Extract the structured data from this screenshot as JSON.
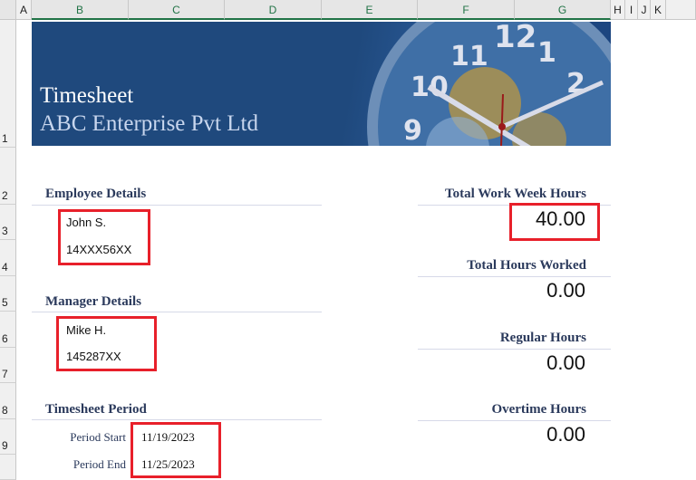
{
  "columns": [
    "A",
    "B",
    "C",
    "D",
    "E",
    "F",
    "G",
    "H",
    "I",
    "J",
    "K"
  ],
  "rows": [
    "1",
    "2",
    "3",
    "4",
    "5",
    "6",
    "7",
    "8",
    "9"
  ],
  "banner": {
    "title": "Timesheet",
    "company": "ABC Enterprise Pvt Ltd",
    "bg": "#1f497d"
  },
  "employee": {
    "heading": "Employee Details",
    "name": "John S.",
    "id": "14XXX56XX"
  },
  "manager": {
    "heading": "Manager Details",
    "name": "Mike H.",
    "id": "145287XX"
  },
  "period": {
    "heading": "Timesheet Period",
    "start_label": "Period Start",
    "start": "11/19/2023",
    "end_label": "Period End",
    "end": "11/25/2023"
  },
  "summary": [
    {
      "label": "Total Work Week Hours",
      "value": "40.00"
    },
    {
      "label": "Total Hours Worked",
      "value": "0.00"
    },
    {
      "label": "Regular Hours",
      "value": "0.00"
    },
    {
      "label": "Overtime Hours",
      "value": "0.00"
    }
  ],
  "highlight_color": "#e8202a"
}
